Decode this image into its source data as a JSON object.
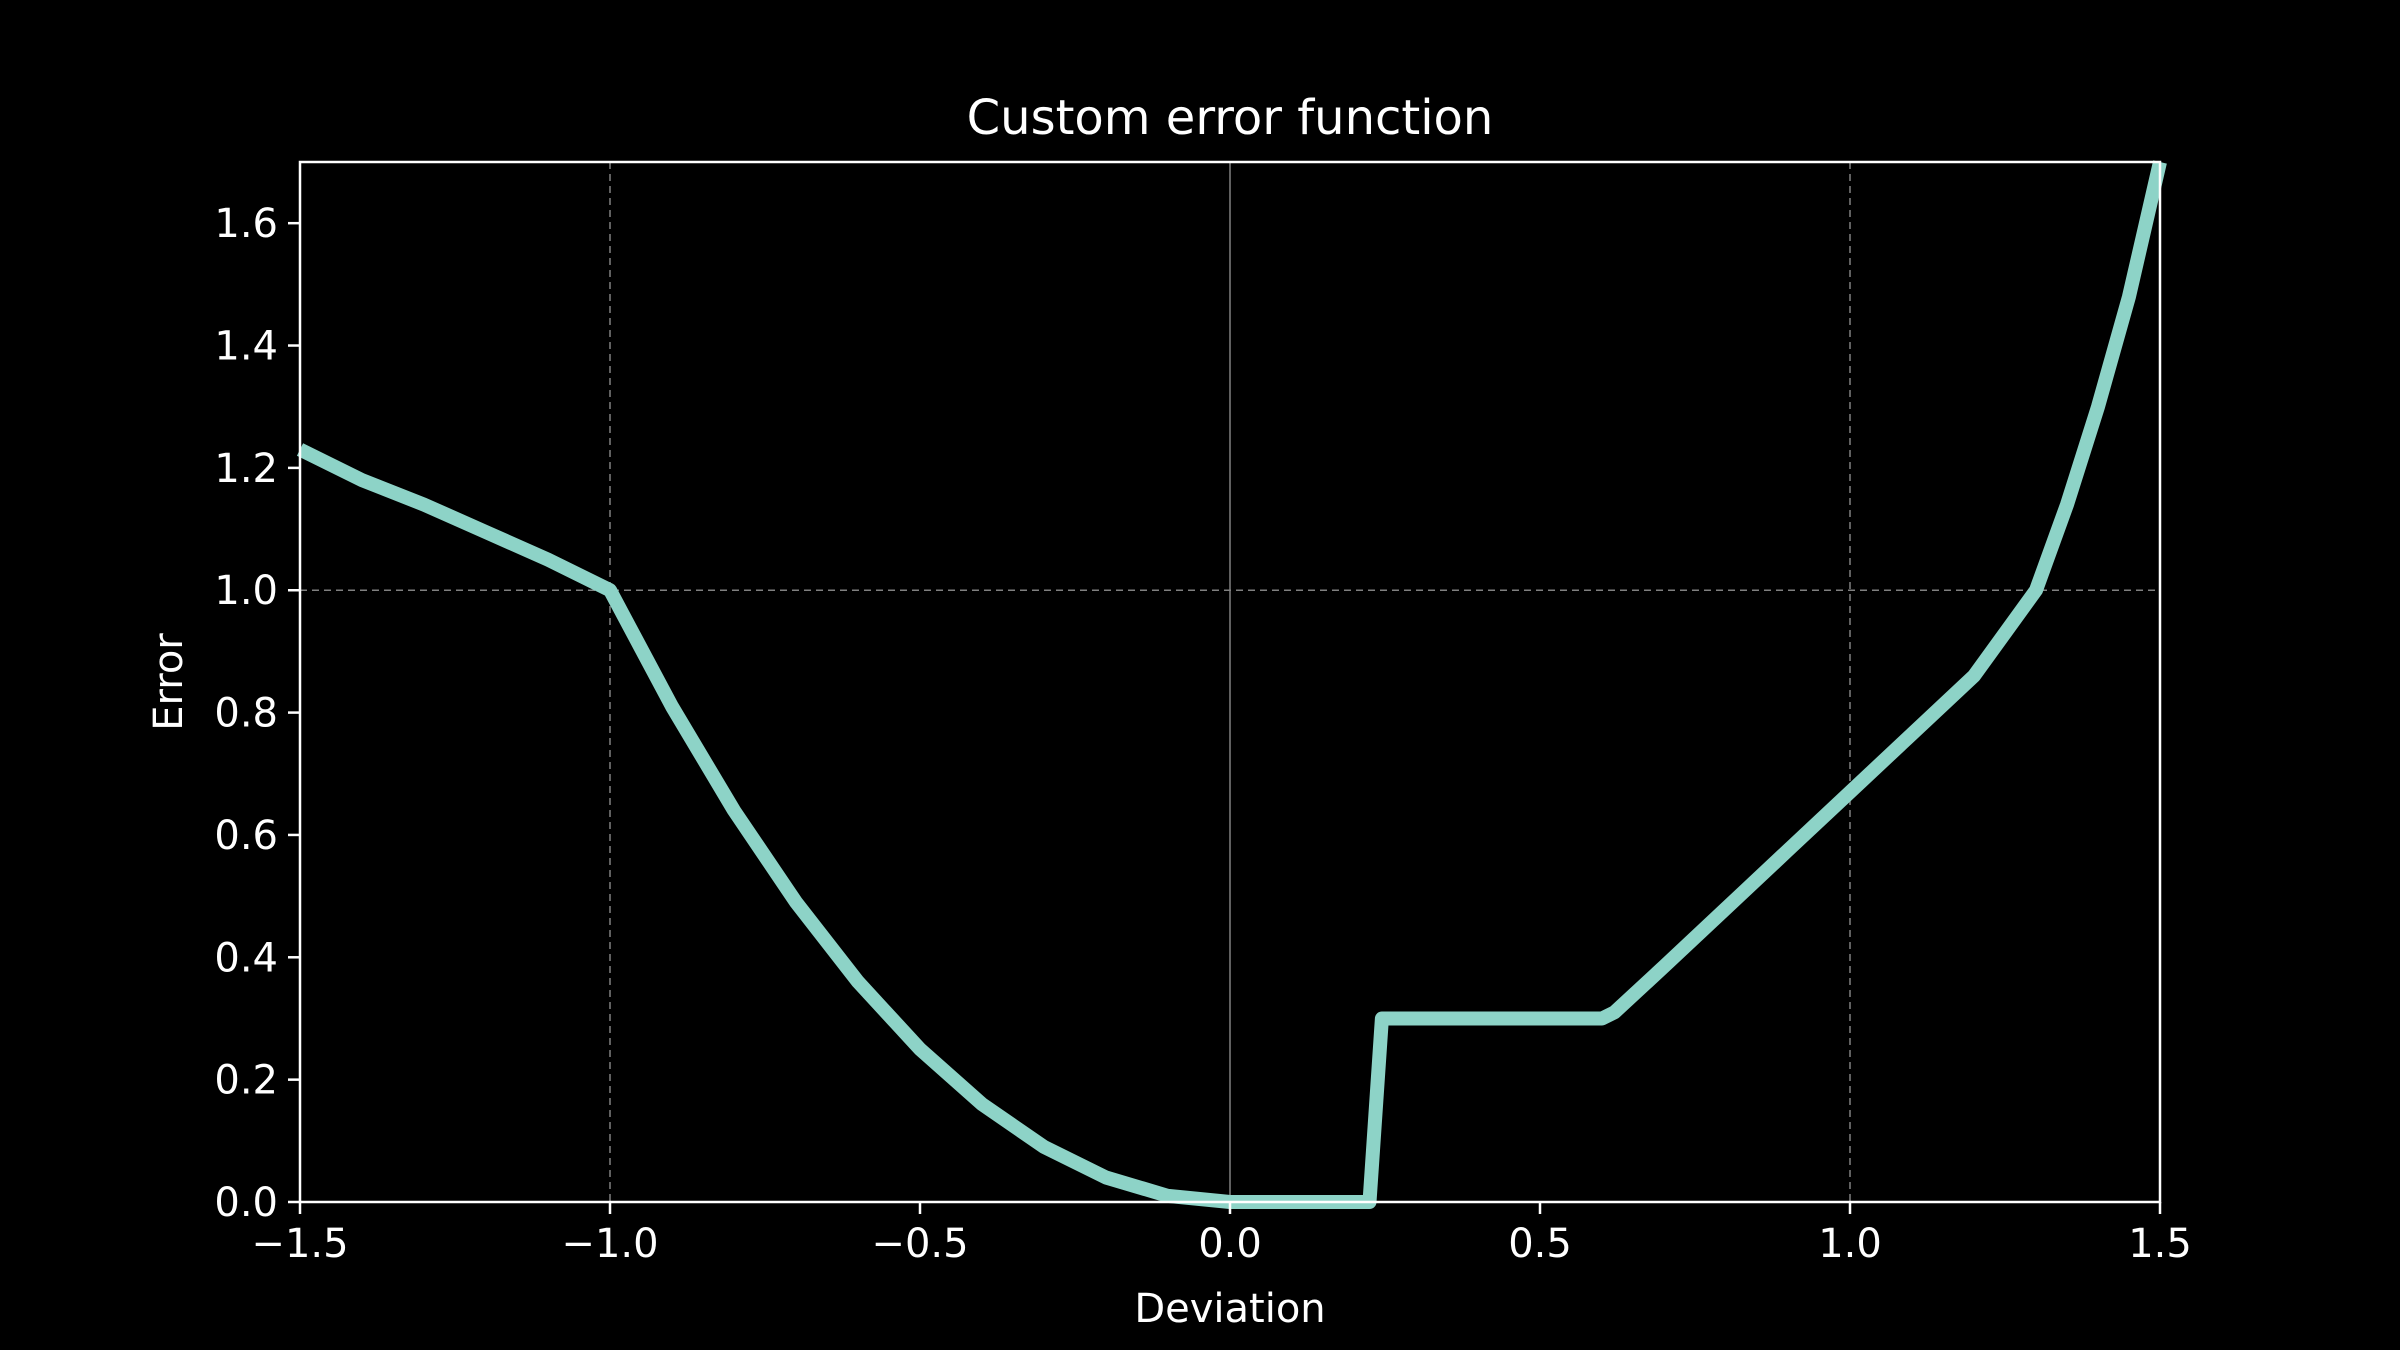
{
  "chart_data": {
    "type": "line",
    "title": "Custom error function",
    "xlabel": "Deviation",
    "ylabel": "Error",
    "xlim": [
      -1.5,
      1.5
    ],
    "ylim": [
      0,
      1.7
    ],
    "x_ticks": [
      -1.5,
      -1.0,
      -0.5,
      0.0,
      0.5,
      1.0,
      1.5
    ],
    "x_tick_labels": [
      "−1.5",
      "−1.0",
      "−0.5",
      "0.0",
      "0.5",
      "1.0",
      "1.5"
    ],
    "y_ticks": [
      0.0,
      0.2,
      0.4,
      0.6,
      0.8,
      1.0,
      1.2,
      1.4,
      1.6
    ],
    "y_tick_labels": [
      "0.0",
      "0.2",
      "0.4",
      "0.6",
      "0.8",
      "1.0",
      "1.2",
      "1.4",
      "1.6"
    ],
    "grid": {
      "dashed_x": [
        -1.0,
        1.0
      ],
      "dashed_y": [
        1.0
      ],
      "solid_x": [
        0.0
      ]
    },
    "series": [
      {
        "color": "#8dd3c7",
        "x": [
          -1.5,
          -1.4,
          -1.3,
          -1.2,
          -1.1,
          -1.0,
          -0.9,
          -0.8,
          -0.7,
          -0.6,
          -0.5,
          -0.4,
          -0.3,
          -0.2,
          -0.1,
          0.0,
          0.1,
          0.2,
          0.225,
          0.245,
          0.3,
          0.4,
          0.5,
          0.6,
          0.62,
          0.7,
          0.8,
          0.9,
          1.0,
          1.1,
          1.2,
          1.3,
          1.35,
          1.4,
          1.45,
          1.5
        ],
        "y": [
          1.23,
          1.18,
          1.14,
          1.095,
          1.05,
          1.0,
          0.81,
          0.64,
          0.49,
          0.36,
          0.25,
          0.16,
          0.09,
          0.04,
          0.01,
          0.0,
          0.0,
          0.0,
          0.0,
          0.3,
          0.3,
          0.3,
          0.3,
          0.3,
          0.31,
          0.385,
          0.48,
          0.575,
          0.67,
          0.765,
          0.86,
          1.0,
          1.14,
          1.3,
          1.48,
          1.7
        ]
      }
    ],
    "colors": {
      "background": "#000000",
      "axes": "#ffffff",
      "grid": "#808080",
      "line": "#8dd3c7"
    }
  }
}
